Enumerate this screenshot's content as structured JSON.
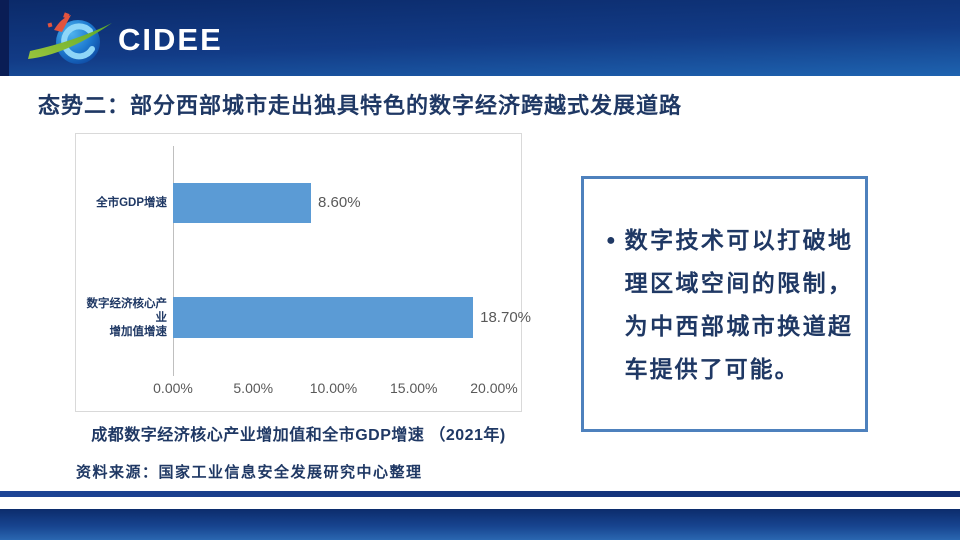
{
  "header": {
    "logo_text": "CIDEE",
    "logo_icon": "cidee-globe-swoosh"
  },
  "title": "态势二：部分西部城市走出独具特色的数字经济跨越式发展道路",
  "chart_data": {
    "type": "bar",
    "orientation": "horizontal",
    "title": "成都数字经济核心产业增加值和全市GDP增速 （2021年)",
    "categories": [
      "全市GDP增速",
      "数字经济核心产业\n增加值增速"
    ],
    "values": [
      8.6,
      18.7
    ],
    "value_labels": [
      "8.60%",
      "18.70%"
    ],
    "x_ticks": [
      "0.00%",
      "5.00%",
      "10.00%",
      "15.00%",
      "20.00%"
    ],
    "xlim": [
      0,
      20
    ],
    "xlabel": "",
    "ylabel": "",
    "grid": false,
    "legend": false,
    "bar_color": "#5B9BD5",
    "axis_color": "#BFBFBF",
    "label_color": "#595959",
    "category_color": "#1F3864"
  },
  "chart_caption": "成都数字经济核心产业增加值和全市GDP增速 （2021年)",
  "source_note": "资料来源：国家工业信息安全发展研究中心整理",
  "callout": {
    "bullet": "●",
    "text": "数字技术可以打破地理区域空间的限制，为中西部城市换道超车提供了可能。"
  },
  "colors": {
    "title_navy": "#1F3864",
    "header_top": "#0B2A69",
    "header_bottom": "#1E63B0",
    "callout_border": "#4E81BD",
    "bar_blue": "#5B9BD5",
    "gray_text": "#595959"
  }
}
